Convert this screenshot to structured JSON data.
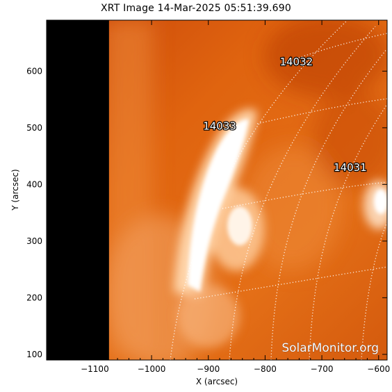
{
  "title": "XRT Image 14-Mar-2025 05:51:39.690",
  "axes": {
    "xlabel": "X (arcsec)",
    "ylabel": "Y (arcsec)",
    "xlim": [
      -1185,
      -585
    ],
    "ylim": [
      90,
      690
    ],
    "x_ticks": [
      -1100,
      -1000,
      -900,
      -800,
      -700,
      -600
    ],
    "x_tick_labels": [
      "−1100",
      "−1000",
      "−900",
      "−800",
      "−700",
      "−600"
    ],
    "y_ticks": [
      100,
      200,
      300,
      400,
      500,
      600
    ],
    "y_tick_labels": [
      "100",
      "200",
      "300",
      "400",
      "500",
      "600"
    ]
  },
  "limb_x": -1075,
  "active_regions": [
    {
      "id": "14032",
      "x": -745,
      "y": 610
    },
    {
      "id": "14033",
      "x": -880,
      "y": 497
    },
    {
      "id": "14031",
      "x": -650,
      "y": 424
    }
  ],
  "watermark": "SolarMonitor.org",
  "colors": {
    "background_disk": "#d85a0c",
    "bright_core": "#ffffff",
    "limb_black": "#000000",
    "grid": "#ffffff"
  }
}
